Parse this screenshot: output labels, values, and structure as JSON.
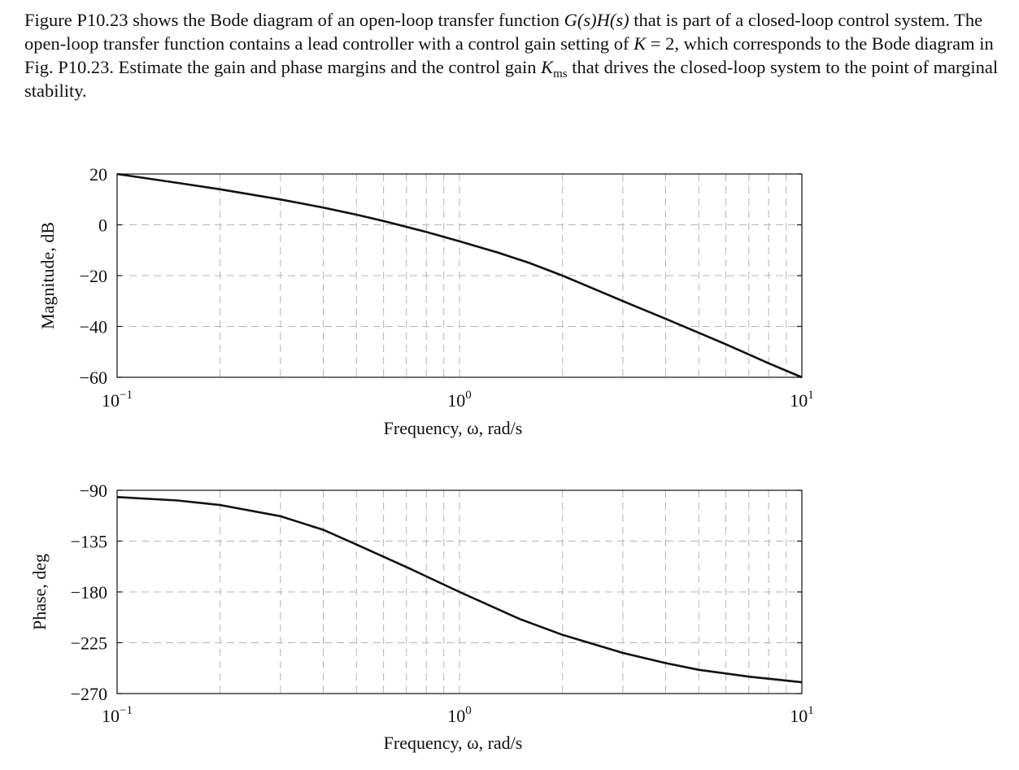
{
  "problem": {
    "line1": "Figure P10.23 shows the Bode diagram of an open-loop transfer function ",
    "gh": "G(s)H(s)",
    "line1b": " that is part of a closed-loop control system. The open-loop transfer function contains a lead controller with a control gain setting of ",
    "k": "K",
    "keq": " = 2, which corresponds to the Bode diagram in Fig. P10.23. Estimate the gain and phase margins and the control gain ",
    "kms": "K",
    "kms_sub": "ms",
    "line_end": " that drives the closed-loop system to the point of marginal stability."
  },
  "chart_data": [
    {
      "type": "line",
      "xscale": "log",
      "xlim": [
        0.1,
        10
      ],
      "ylim": [
        -60,
        20
      ],
      "yticks": [
        20,
        0,
        -20,
        -40,
        -60
      ],
      "ytick_labels": [
        "20",
        "0",
        "−20",
        "−40",
        "−60"
      ],
      "xtick_labels": [
        {
          "base": "10",
          "exp": "−1"
        },
        {
          "base": "10",
          "exp": "0"
        },
        {
          "base": "10",
          "exp": "1"
        }
      ],
      "xlabel": "Frequency, ω, rad/s",
      "ylabel": "Magnitude, dB",
      "grid": true,
      "series": [
        {
          "x": [
            0.1,
            0.15,
            0.2,
            0.3,
            0.4,
            0.5,
            0.6,
            0.7,
            0.8,
            1.0,
            1.3,
            1.6,
            2.0,
            2.5,
            3.0,
            4.0,
            5.0,
            6.0,
            7.0,
            8.0,
            10.0
          ],
          "y": [
            20,
            16.5,
            14,
            10,
            6.8,
            4,
            1.5,
            -0.8,
            -2.8,
            -6.5,
            -11,
            -15,
            -20,
            -25.5,
            -30,
            -37,
            -42.5,
            -47,
            -51,
            -54.5,
            -60
          ]
        }
      ]
    },
    {
      "type": "line",
      "xscale": "log",
      "xlim": [
        0.1,
        10
      ],
      "ylim": [
        -270,
        -90
      ],
      "yticks": [
        -90,
        -135,
        -180,
        -225,
        -270
      ],
      "ytick_labels": [
        "−90",
        "−135",
        "−180",
        "−225",
        "−270"
      ],
      "xtick_labels": [
        {
          "base": "10",
          "exp": "−1"
        },
        {
          "base": "10",
          "exp": "0"
        },
        {
          "base": "10",
          "exp": "1"
        }
      ],
      "xlabel": "Frequency, ω, rad/s",
      "ylabel": "Phase, deg",
      "grid": true,
      "series": [
        {
          "x": [
            0.1,
            0.15,
            0.2,
            0.3,
            0.4,
            0.5,
            0.7,
            1.0,
            1.5,
            2.0,
            3.0,
            4.0,
            5.0,
            7.0,
            10.0
          ],
          "y": [
            -96,
            -99,
            -103,
            -113,
            -125,
            -138,
            -158,
            -180,
            -204,
            -218,
            -234,
            -243,
            -249,
            -255,
            -260
          ]
        }
      ]
    }
  ]
}
